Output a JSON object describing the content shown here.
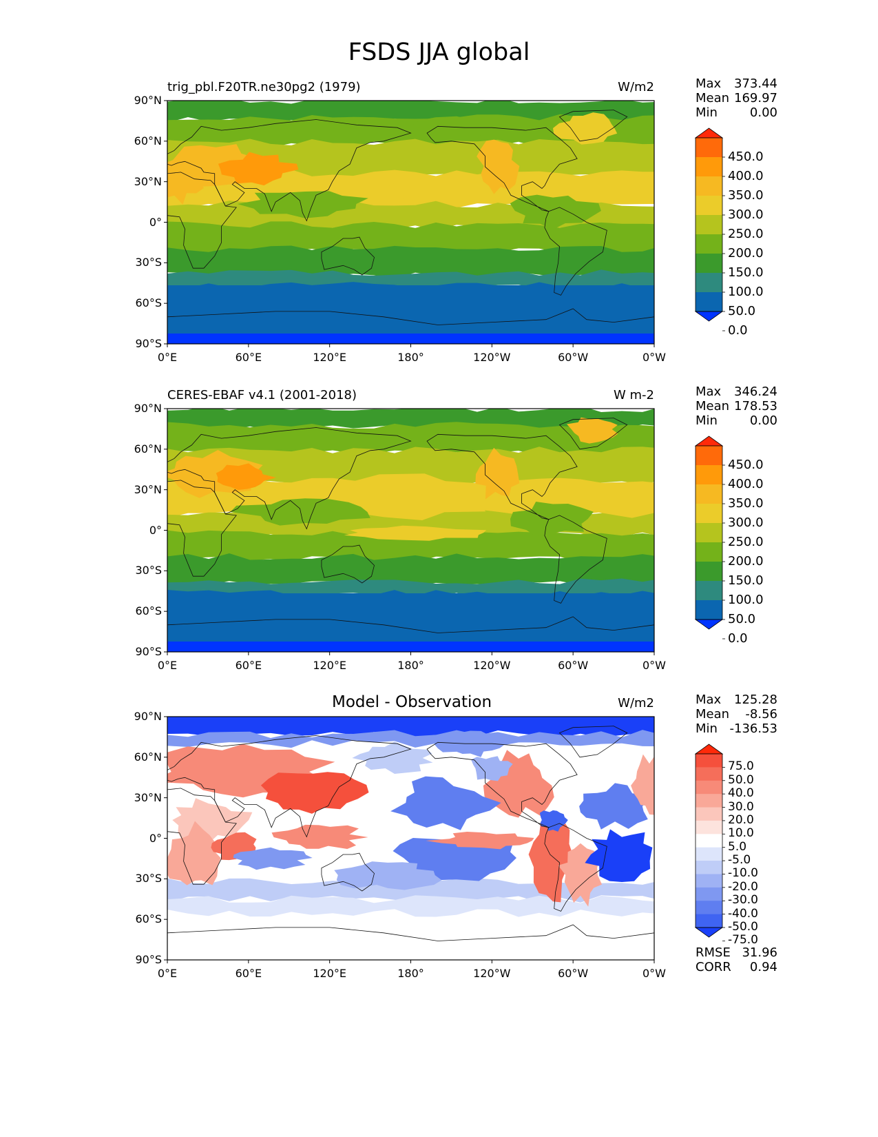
{
  "title": "FSDS JJA global",
  "lat_ticks": [
    "90°N",
    "60°N",
    "30°N",
    "0°",
    "30°S",
    "60°S",
    "90°S"
  ],
  "lon_ticks": [
    "0°E",
    "60°E",
    "120°E",
    "180°",
    "120°W",
    "60°W",
    "0°W"
  ],
  "panels": [
    {
      "title": "trig_pbl.F20TR.ne30pg2 (1979)",
      "units": "W/m2",
      "stats": {
        "max_label": "Max",
        "max": "373.44",
        "mean_label": "Mean",
        "mean": "169.97",
        "min_label": "Min",
        "min": "0.00"
      },
      "colorbar_labels": [
        "450.0",
        "400.0",
        "350.0",
        "300.0",
        "250.0",
        "200.0",
        "150.0",
        "100.0",
        "50.0",
        "0.0"
      ],
      "colors": [
        "#ff2a0a",
        "#ff6a0a",
        "#ff9a0a",
        "#f6b922",
        "#ebcc2a",
        "#b5c41e",
        "#74b21a",
        "#3b9a2c",
        "#2e8a7e",
        "#0b66b0",
        "#0034ff"
      ]
    },
    {
      "title": "CERES-EBAF v4.1 (2001-2018)",
      "units": "W m-2",
      "stats": {
        "max_label": "Max",
        "max": "346.24",
        "mean_label": "Mean",
        "mean": "178.53",
        "min_label": "Min",
        "min": "0.00"
      },
      "colorbar_labels": [
        "450.0",
        "400.0",
        "350.0",
        "300.0",
        "250.0",
        "200.0",
        "150.0",
        "100.0",
        "50.0",
        "0.0"
      ],
      "colors": [
        "#ff2a0a",
        "#ff6a0a",
        "#ff9a0a",
        "#f6b922",
        "#ebcc2a",
        "#b5c41e",
        "#74b21a",
        "#3b9a2c",
        "#2e8a7e",
        "#0b66b0",
        "#0034ff"
      ]
    },
    {
      "title": "Model - Observation",
      "units": "W/m2",
      "stats": {
        "max_label": "Max",
        "max": "125.28",
        "mean_label": "Mean",
        "mean": "-8.56",
        "min_label": "Min",
        "min": "-136.53"
      },
      "colorbar_labels": [
        "75.0",
        "50.0",
        "40.0",
        "30.0",
        "20.0",
        "10.0",
        "5.0",
        "-5.0",
        "-10.0",
        "-20.0",
        "-30.0",
        "-40.0",
        "-50.0",
        "-75.0"
      ],
      "colors": [
        "#ff2a0a",
        "#f5503c",
        "#f56e5a",
        "#f78a78",
        "#f9a898",
        "#fbc6bb",
        "#fde3dd",
        "#ffffff",
        "#dde5fb",
        "#bfcdf7",
        "#9fb2f4",
        "#7f98f1",
        "#5f7ef0",
        "#3f64f2",
        "#1a40f8"
      ],
      "rmse_label": "RMSE",
      "rmse": "31.96",
      "corr_label": "CORR",
      "corr": "0.94"
    }
  ]
}
